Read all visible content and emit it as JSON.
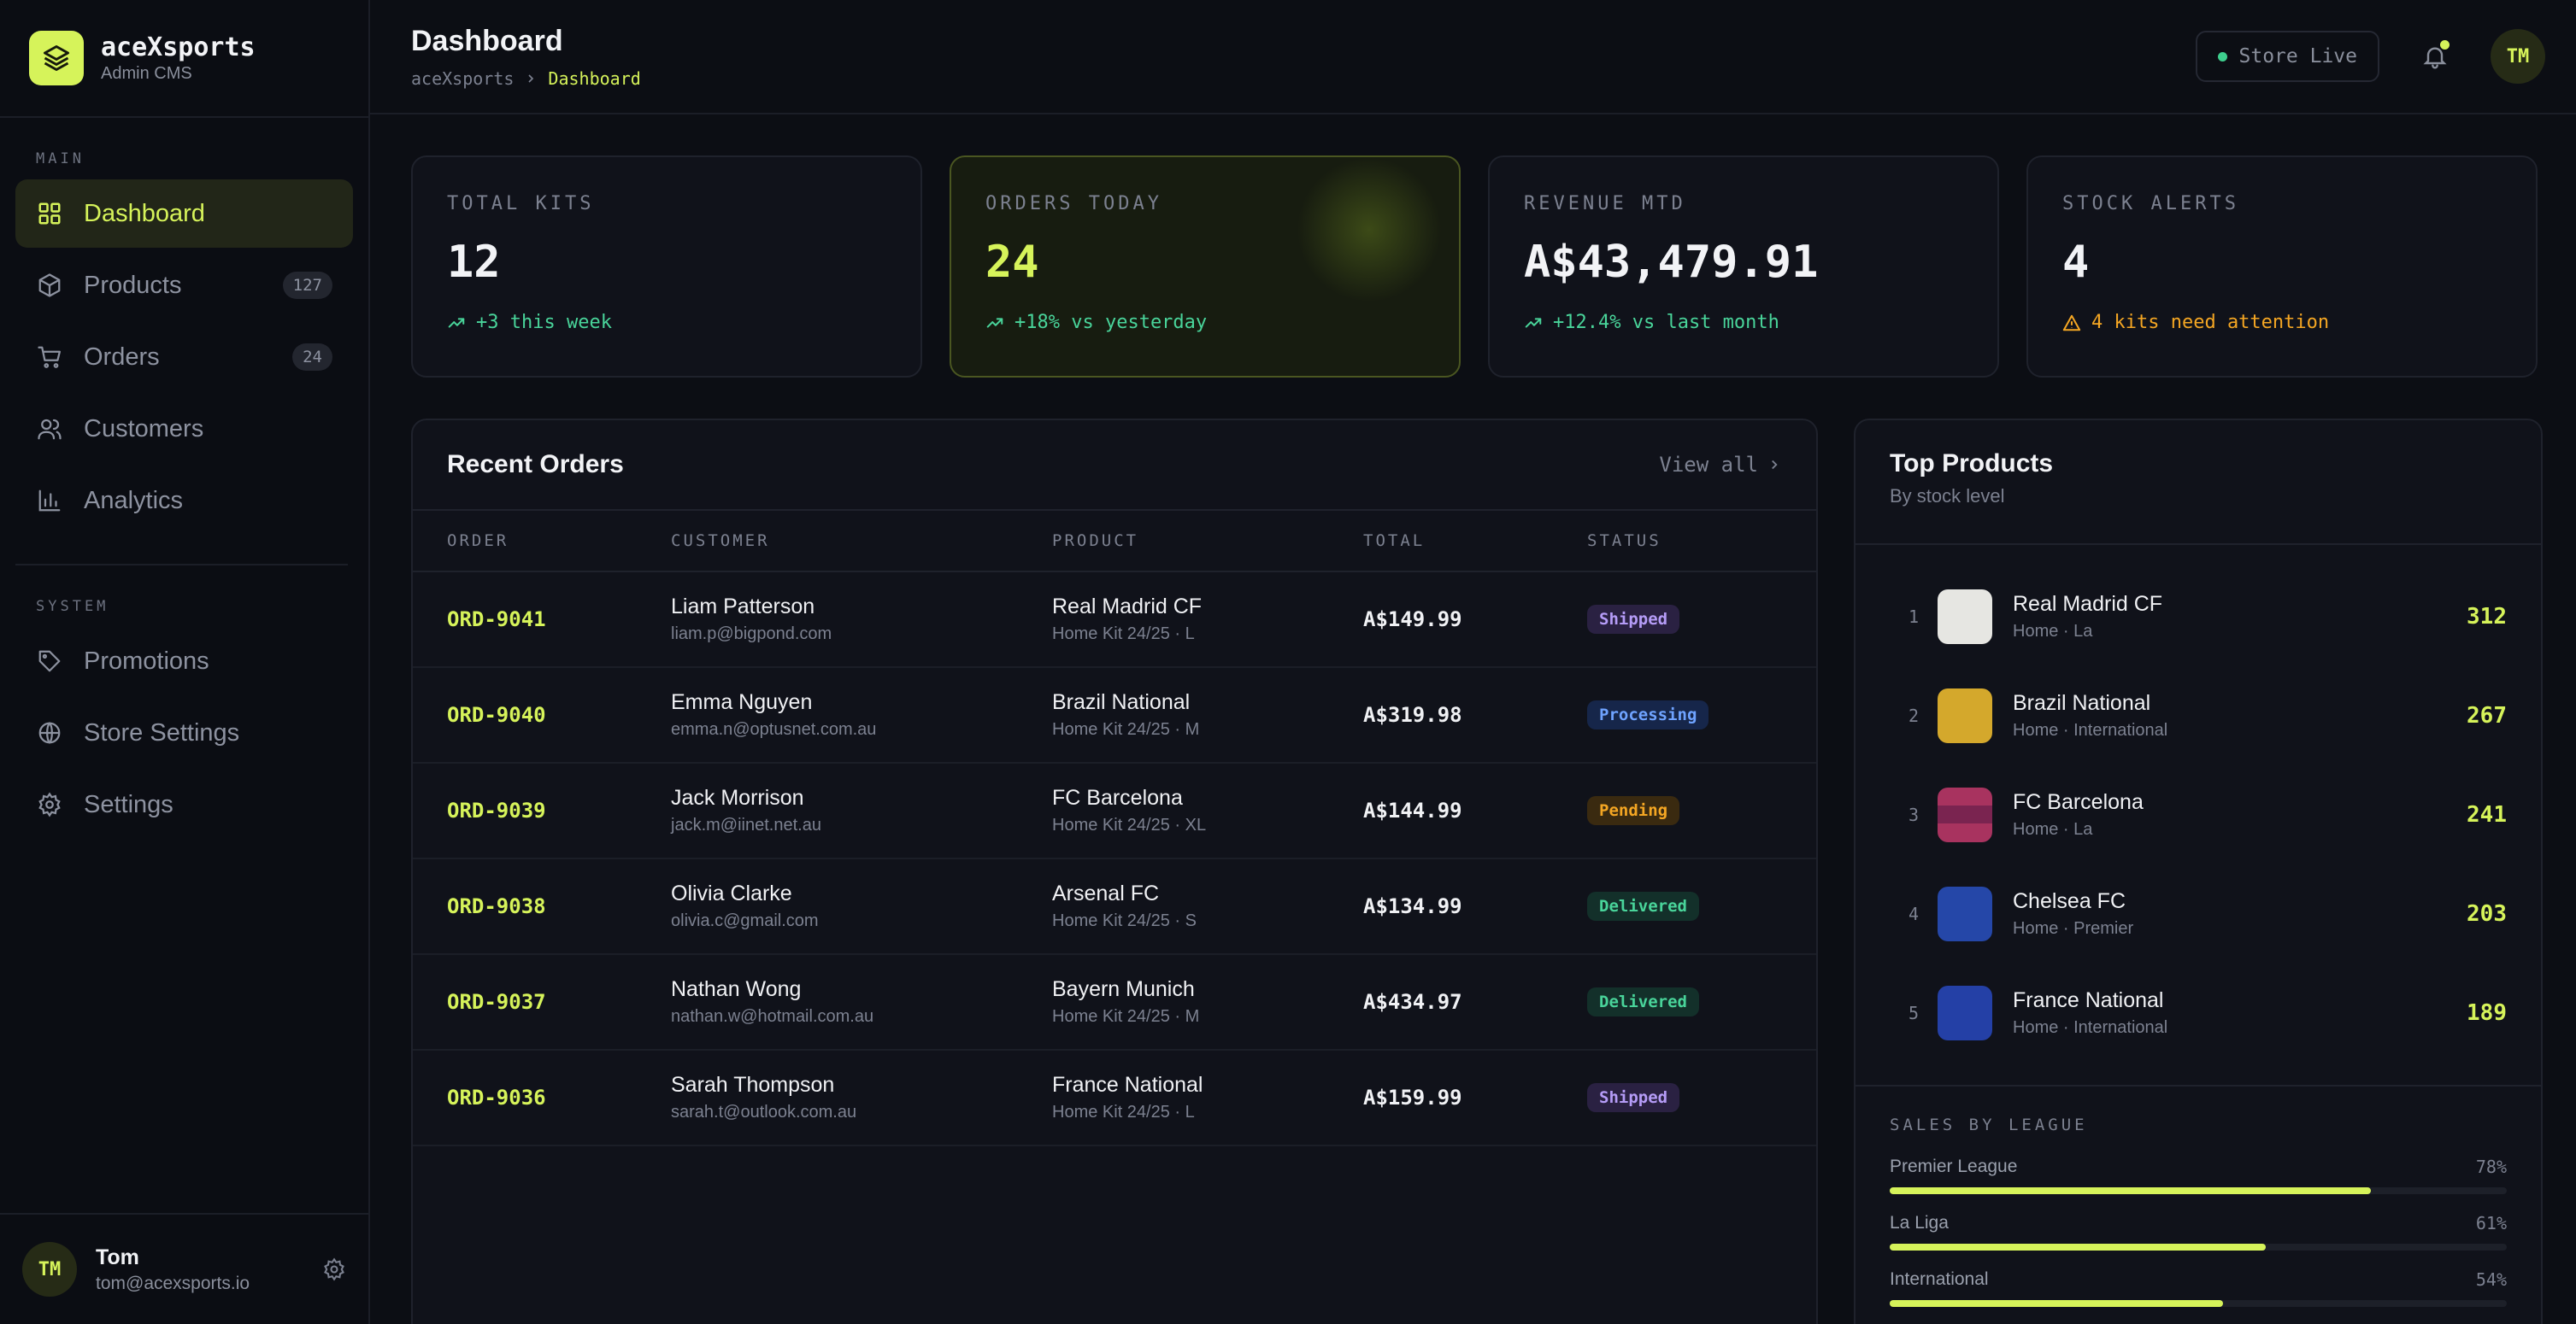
{
  "brand": {
    "name": "aceXsports",
    "subtitle": "Admin CMS"
  },
  "sidebar": {
    "main_label": "MAIN",
    "system_label": "SYSTEM",
    "main_items": [
      {
        "label": "Dashboard",
        "icon": "grid-icon",
        "active": true
      },
      {
        "label": "Products",
        "icon": "box-icon",
        "badge": "127"
      },
      {
        "label": "Orders",
        "icon": "cart-icon",
        "badge": "24"
      },
      {
        "label": "Customers",
        "icon": "users-icon"
      },
      {
        "label": "Analytics",
        "icon": "bar-chart-icon"
      }
    ],
    "system_items": [
      {
        "label": "Promotions",
        "icon": "tag-icon"
      },
      {
        "label": "Store Settings",
        "icon": "globe-icon"
      },
      {
        "label": "Settings",
        "icon": "gear-icon"
      }
    ]
  },
  "user": {
    "initials": "TM",
    "name": "Tom",
    "email": "tom@acexsports.io"
  },
  "header": {
    "title": "Dashboard",
    "breadcrumb": [
      "aceXsports",
      "Dashboard"
    ],
    "store_status": "Store Live",
    "avatar_initials": "TM"
  },
  "stats": [
    {
      "label": "TOTAL KITS",
      "value": "12",
      "delta": "+3 this week",
      "tone": "up"
    },
    {
      "label": "ORDERS TODAY",
      "value": "24",
      "delta": "+18% vs yesterday",
      "tone": "up",
      "highlight": true
    },
    {
      "label": "REVENUE MTD",
      "value": "A$43,479.91",
      "delta": "+12.4% vs last month",
      "tone": "up"
    },
    {
      "label": "STOCK ALERTS",
      "value": "4",
      "delta": "4 kits need attention",
      "tone": "warn"
    }
  ],
  "orders": {
    "title": "Recent Orders",
    "view_all": "View all",
    "columns": [
      "ORDER",
      "CUSTOMER",
      "PRODUCT",
      "TOTAL",
      "STATUS"
    ],
    "rows": [
      {
        "id": "ORD-9041",
        "customer": "Liam Patterson",
        "email": "liam.p@bigpond.com",
        "product": "Real Madrid CF",
        "variant": "Home Kit 24/25 · L",
        "total": "A$149.99",
        "status": "Shipped"
      },
      {
        "id": "ORD-9040",
        "customer": "Emma Nguyen",
        "email": "emma.n@optusnet.com.au",
        "product": "Brazil National",
        "variant": "Home Kit 24/25 · M",
        "total": "A$319.98",
        "status": "Processing"
      },
      {
        "id": "ORD-9039",
        "customer": "Jack Morrison",
        "email": "jack.m@iinet.net.au",
        "product": "FC Barcelona",
        "variant": "Home Kit 24/25 · XL",
        "total": "A$144.99",
        "status": "Pending"
      },
      {
        "id": "ORD-9038",
        "customer": "Olivia Clarke",
        "email": "olivia.c@gmail.com",
        "product": "Arsenal FC",
        "variant": "Home Kit 24/25 · S",
        "total": "A$134.99",
        "status": "Delivered"
      },
      {
        "id": "ORD-9037",
        "customer": "Nathan Wong",
        "email": "nathan.w@hotmail.com.au",
        "product": "Bayern Munich",
        "variant": "Home Kit 24/25 · M",
        "total": "A$434.97",
        "status": "Delivered"
      },
      {
        "id": "ORD-9036",
        "customer": "Sarah Thompson",
        "email": "sarah.t@outlook.com.au",
        "product": "France National",
        "variant": "Home Kit 24/25 · L",
        "total": "A$159.99",
        "status": "Shipped"
      }
    ]
  },
  "status_colors": {
    "Shipped": {
      "bg": "#2a2142",
      "fg": "#b59cf7"
    },
    "Processing": {
      "bg": "#16264a",
      "fg": "#6fa3ff"
    },
    "Pending": {
      "bg": "#3a2a10",
      "fg": "#f4a623"
    },
    "Delivered": {
      "bg": "#13302a",
      "fg": "#49d49a"
    }
  },
  "top_products": {
    "title": "Top Products",
    "subtitle": "By stock level",
    "items": [
      {
        "rank": "1",
        "name": "Real Madrid CF",
        "meta": "Home · La",
        "stock": "312",
        "swatch": "#e6e6e2"
      },
      {
        "rank": "2",
        "name": "Brazil National",
        "meta": "Home · International",
        "stock": "267",
        "swatch": "#d4a82c"
      },
      {
        "rank": "3",
        "name": "FC Barcelona",
        "meta": "Home · La",
        "stock": "241",
        "swatch": "#a8335f"
      },
      {
        "rank": "4",
        "name": "Chelsea FC",
        "meta": "Home · Premier",
        "stock": "203",
        "swatch": "#2547a8"
      },
      {
        "rank": "5",
        "name": "France National",
        "meta": "Home · International",
        "stock": "189",
        "swatch": "#2440a6"
      }
    ]
  },
  "sales_by_league": {
    "title": "SALES BY LEAGUE",
    "rows": [
      {
        "name": "Premier League",
        "pct": "78%",
        "value": 78
      },
      {
        "name": "La Liga",
        "pct": "61%",
        "value": 61
      },
      {
        "name": "International",
        "pct": "54%",
        "value": 54
      }
    ]
  },
  "colors": {
    "accent": "#d6f35a",
    "positive": "#49d49a",
    "warning": "#f4a623",
    "background": "#0c0e14"
  }
}
